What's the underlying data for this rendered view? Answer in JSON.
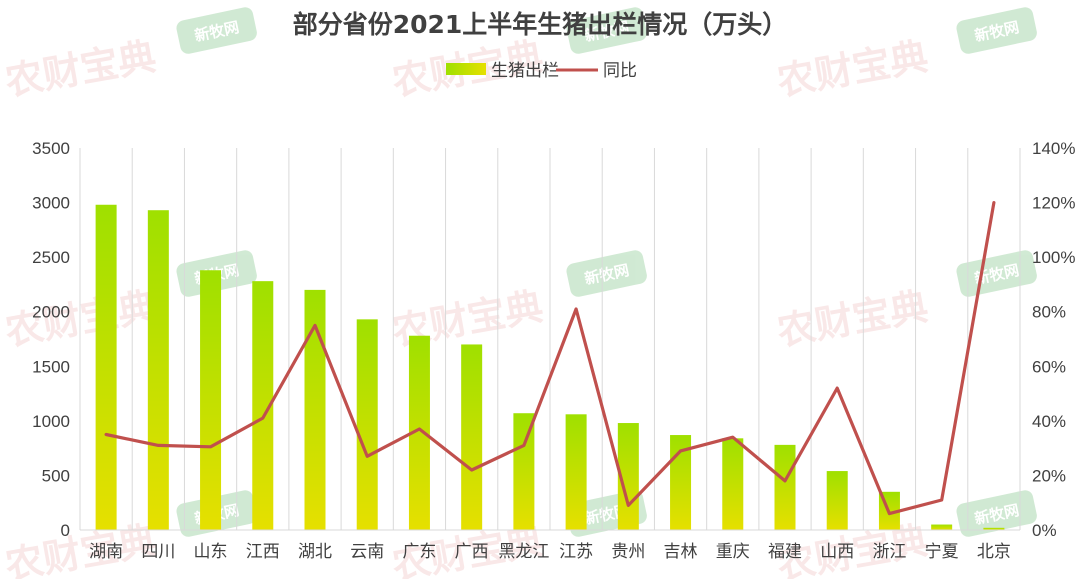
{
  "chart_data": {
    "type": "bar",
    "title": "部分省份2021上半年生猪出栏情况（万头）",
    "categories": [
      "湖南",
      "四川",
      "山东",
      "江西",
      "湖北",
      "云南",
      "广东",
      "广西",
      "黑龙江",
      "江苏",
      "贵州",
      "吉林",
      "重庆",
      "福建",
      "山西",
      "浙江",
      "宁夏",
      "北京"
    ],
    "series": [
      {
        "name": "生猪出栏",
        "type": "bar",
        "axis": "left",
        "values": [
          2980,
          2930,
          2380,
          2280,
          2200,
          1930,
          1780,
          1700,
          1070,
          1060,
          980,
          870,
          840,
          780,
          540,
          350,
          50,
          20
        ]
      },
      {
        "name": "同比",
        "type": "line",
        "axis": "right",
        "values": [
          0.35,
          0.31,
          0.305,
          0.41,
          0.75,
          0.27,
          0.37,
          0.22,
          0.31,
          0.81,
          0.09,
          0.29,
          0.34,
          0.18,
          0.52,
          0.06,
          0.11,
          1.2
        ]
      }
    ],
    "y_left": {
      "ylim": [
        0,
        3500
      ],
      "ticks": [
        "0",
        "500",
        "1000",
        "1500",
        "2000",
        "2500",
        "3000",
        "3500"
      ]
    },
    "y_right": {
      "ylim": [
        0,
        1.4
      ],
      "ticks": [
        "0%",
        "20%",
        "40%",
        "60%",
        "80%",
        "100%",
        "120%",
        "140%"
      ]
    },
    "grid": "vertical",
    "legend": "top-center",
    "colors": {
      "bar_top": "#9fe000",
      "bar_bottom": "#e6e000",
      "line": "#c0504d",
      "text": "#404040",
      "grid": "#d9d9d9"
    }
  },
  "watermarks": {
    "brand_a": "农财宝典",
    "brand_b": "新牧网"
  }
}
